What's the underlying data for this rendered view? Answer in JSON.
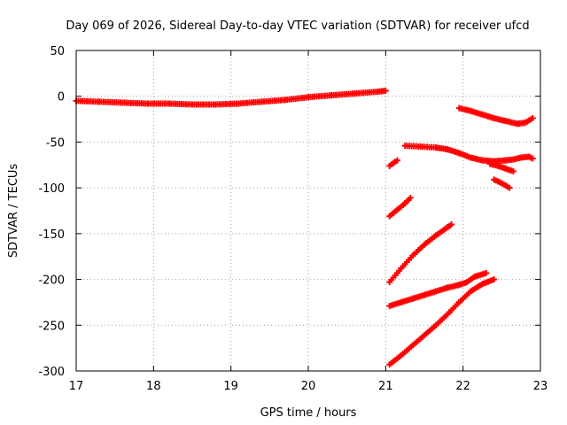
{
  "chart_data": {
    "type": "scatter",
    "title": "Day 069 of 2026, Sidereal Day-to-day VTEC variation (SDTVAR) for receiver ufcd",
    "xlabel": "GPS time / hours",
    "ylabel": "SDTVAR / TECUs",
    "xlim": [
      17,
      23
    ],
    "ylim": [
      -300,
      50
    ],
    "xticks": [
      17,
      18,
      19,
      20,
      21,
      22,
      23
    ],
    "yticks": [
      50,
      0,
      -50,
      -100,
      -150,
      -200,
      -250,
      -300
    ],
    "xtick_labels": [
      "17",
      "18",
      "19",
      "20",
      "21",
      "22",
      "23"
    ],
    "ytick_labels": [
      "50",
      "0",
      "-50",
      "-100",
      "-150",
      "-200",
      "-250",
      "-300"
    ],
    "grid": true,
    "legend": "none",
    "marker_color": "#ff0000",
    "marker": "plus",
    "series": [
      {
        "x": [
          17.0,
          17.3,
          17.6,
          17.9,
          18.2,
          18.5,
          18.8,
          19.1,
          19.4,
          19.7,
          20.0,
          20.3,
          20.6,
          20.9,
          21.0
        ],
        "y": [
          -5,
          -6,
          -7,
          -8,
          -8,
          -9,
          -9,
          -8,
          -6,
          -4,
          -1,
          1,
          3,
          5,
          6
        ]
      },
      {
        "x": [
          21.05,
          21.1,
          21.15
        ],
        "y": [
          -76,
          -73,
          -70
        ]
      },
      {
        "x": [
          21.05,
          21.15,
          21.25,
          21.32
        ],
        "y": [
          -131,
          -124,
          -117,
          -111
        ]
      },
      {
        "x": [
          21.05,
          21.2,
          21.35,
          21.5,
          21.65,
          21.8,
          21.85
        ],
        "y": [
          -203,
          -188,
          -174,
          -162,
          -152,
          -143,
          -140
        ]
      },
      {
        "x": [
          21.05,
          21.2,
          21.35,
          21.5,
          21.65,
          21.8,
          21.95,
          22.05,
          22.15,
          22.3
        ],
        "y": [
          -229,
          -225,
          -221,
          -217,
          -213,
          -209,
          -206,
          -203,
          -197,
          -193
        ]
      },
      {
        "x": [
          21.05,
          21.2,
          21.35,
          21.5,
          21.65,
          21.8,
          21.95,
          22.1,
          22.25,
          22.4
        ],
        "y": [
          -293,
          -283,
          -272,
          -261,
          -250,
          -238,
          -225,
          -213,
          -205,
          -200
        ]
      },
      {
        "x": [
          21.25,
          21.45,
          21.65,
          21.8,
          21.95,
          22.1,
          22.25,
          22.4,
          22.55,
          22.65,
          22.75,
          22.85,
          22.9
        ],
        "y": [
          -54,
          -55,
          -56,
          -58,
          -62,
          -67,
          -70,
          -71,
          -70,
          -69,
          -67,
          -66,
          -68
        ]
      },
      {
        "x": [
          21.95,
          22.1,
          22.25,
          22.4,
          22.55,
          22.7,
          22.8,
          22.9
        ],
        "y": [
          -13,
          -16,
          -20,
          -24,
          -27,
          -30,
          -29,
          -24
        ]
      },
      {
        "x": [
          22.35,
          22.45,
          22.55,
          22.65
        ],
        "y": [
          -74,
          -76,
          -79,
          -82
        ]
      },
      {
        "x": [
          22.4,
          22.5,
          22.6
        ],
        "y": [
          -91,
          -95,
          -100
        ]
      }
    ]
  }
}
